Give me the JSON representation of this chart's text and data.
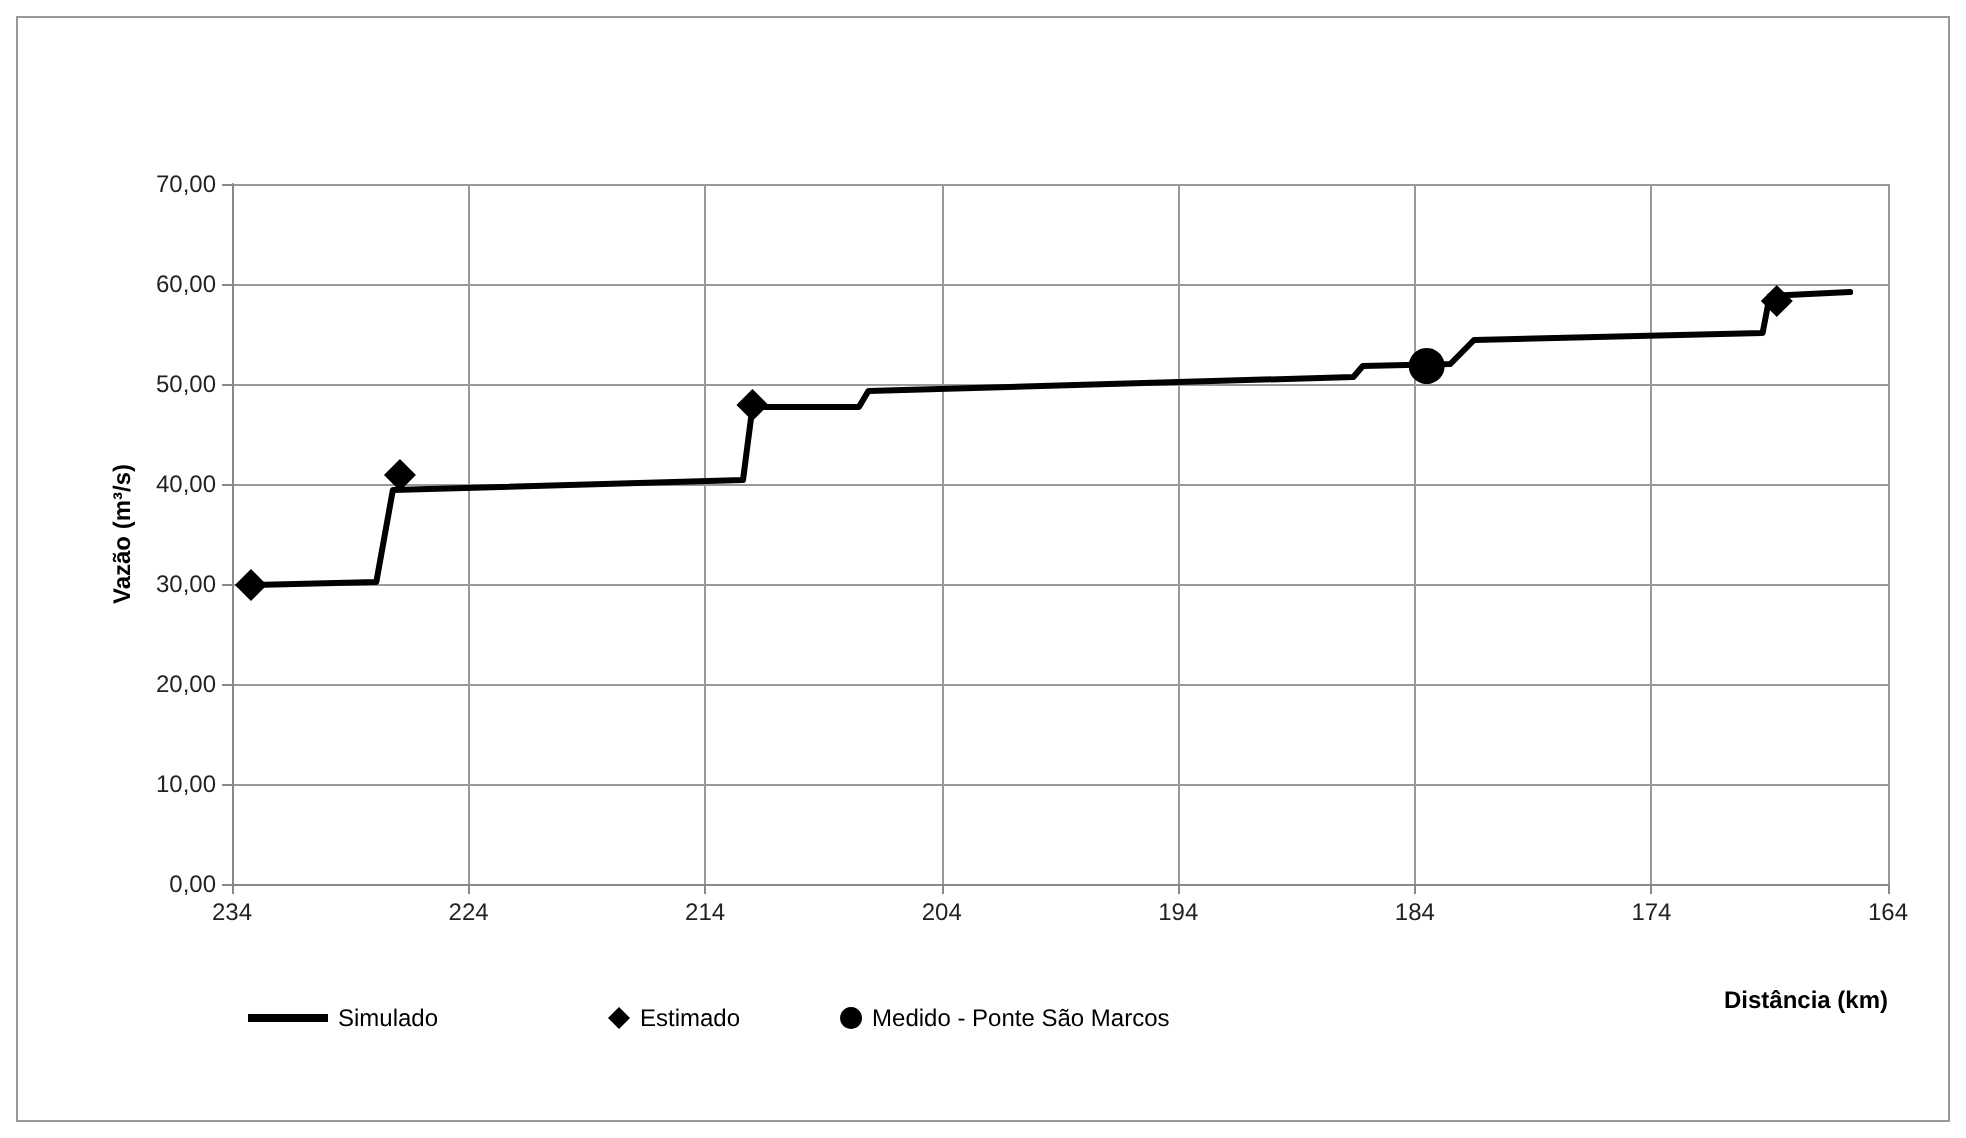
{
  "chart_data": {
    "type": "line",
    "xlabel": "Distância (km)",
    "ylabel": "Vazão (m³/s)",
    "xlim": [
      234,
      164
    ],
    "xticks": [
      234,
      224,
      214,
      204,
      194,
      184,
      174,
      164
    ],
    "ylim": [
      0,
      70
    ],
    "yticks": [
      {
        "value": 0,
        "label": "0,00"
      },
      {
        "value": 10,
        "label": "10,00"
      },
      {
        "value": 20,
        "label": "20,00"
      },
      {
        "value": 30,
        "label": "30,00"
      },
      {
        "value": 40,
        "label": "40,00"
      },
      {
        "value": 50,
        "label": "50,00"
      },
      {
        "value": 60,
        "label": "60,00"
      },
      {
        "value": 70,
        "label": "70,00"
      }
    ],
    "grid": true,
    "legend": "bottom",
    "series": [
      {
        "name": "Simulado",
        "marker": "none",
        "line_style": "solid",
        "color": "#000000",
        "x": [
          233.2,
          227.9,
          227.2,
          212.4,
          212.0,
          207.5,
          207.1,
          199.8,
          186.6,
          186.2,
          182.5,
          181.5,
          169.3,
          169.0,
          165.6
        ],
        "values": [
          29.9,
          30.2,
          39.4,
          40.4,
          47.7,
          47.7,
          49.3,
          49.8,
          50.7,
          51.8,
          52.0,
          54.4,
          55.1,
          58.8,
          59.2
        ]
      },
      {
        "name": "Estimado",
        "type": "scatter",
        "marker": "diamond",
        "color": "#000000",
        "x": [
          233.2,
          226.9,
          212.0,
          168.7
        ],
        "values": [
          29.9,
          40.9,
          47.9,
          58.3
        ]
      },
      {
        "name": "Medido - Ponte São Marcos",
        "type": "scatter",
        "marker": "circle",
        "color": "#000000",
        "x": [
          183.5
        ],
        "values": [
          51.8
        ]
      }
    ]
  }
}
